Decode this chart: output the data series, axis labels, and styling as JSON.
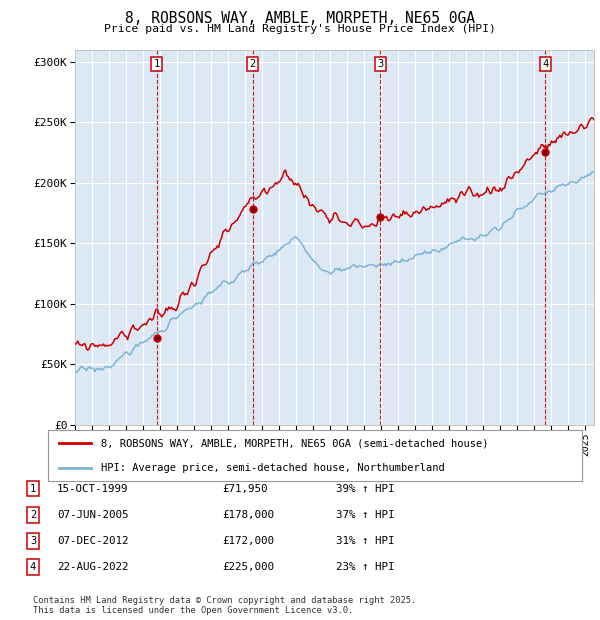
{
  "title": "8, ROBSONS WAY, AMBLE, MORPETH, NE65 0GA",
  "subtitle": "Price paid vs. HM Land Registry's House Price Index (HPI)",
  "ylim": [
    0,
    310000
  ],
  "yticks": [
    0,
    50000,
    100000,
    150000,
    200000,
    250000,
    300000
  ],
  "ytick_labels": [
    "£0",
    "£50K",
    "£100K",
    "£150K",
    "£200K",
    "£250K",
    "£300K"
  ],
  "plot_bg_color": "#dce9f5",
  "grid_color": "#ffffff",
  "sale_color": "#cc0000",
  "hpi_color": "#7fb3d3",
  "vline_color": "#cc0000",
  "sale_dates": [
    1999.79,
    2005.44,
    2012.93,
    2022.64
  ],
  "sale_prices": [
    71950,
    178000,
    172000,
    225000
  ],
  "sale_labels": [
    "1",
    "2",
    "3",
    "4"
  ],
  "legend_sale": "8, ROBSONS WAY, AMBLE, MORPETH, NE65 0GA (semi-detached house)",
  "legend_hpi": "HPI: Average price, semi-detached house, Northumberland",
  "table_entries": [
    {
      "label": "1",
      "date": "15-OCT-1999",
      "price": "£71,950",
      "hpi": "39% ↑ HPI"
    },
    {
      "label": "2",
      "date": "07-JUN-2005",
      "price": "£178,000",
      "hpi": "37% ↑ HPI"
    },
    {
      "label": "3",
      "date": "07-DEC-2012",
      "price": "£172,000",
      "hpi": "31% ↑ HPI"
    },
    {
      "label": "4",
      "date": "22-AUG-2022",
      "price": "£225,000",
      "hpi": "23% ↑ HPI"
    }
  ],
  "footer": "Contains HM Land Registry data © Crown copyright and database right 2025.\nThis data is licensed under the Open Government Licence v3.0.",
  "xmin": 1995.0,
  "xmax": 2025.5
}
